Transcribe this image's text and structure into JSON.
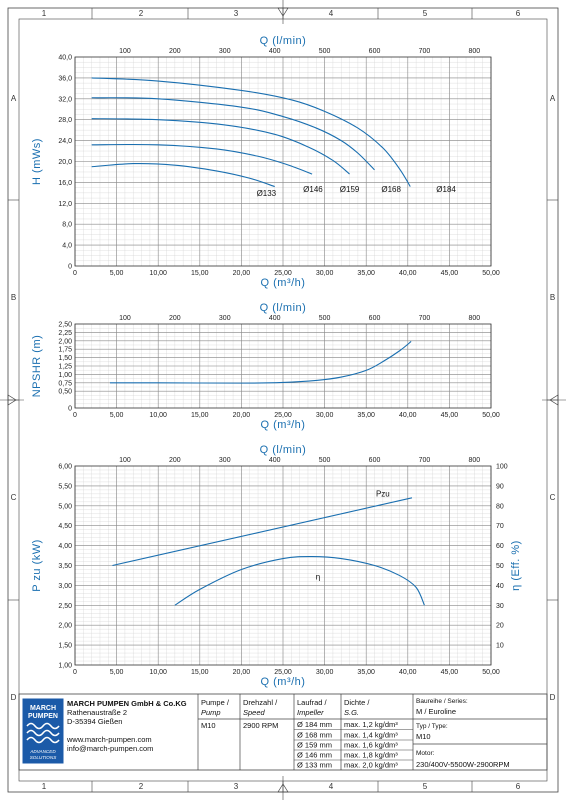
{
  "frame": {
    "columns": [
      "1",
      "2",
      "3",
      "4",
      "5",
      "6"
    ],
    "rows": [
      "A",
      "B",
      "C",
      "D"
    ]
  },
  "chart_data": [
    {
      "type": "line",
      "id": "head",
      "x_label": "Q (m³/h)",
      "x2_label": "Q (l/min)",
      "y_label": "H (mWs)",
      "xlim": [
        0,
        50
      ],
      "ylim": [
        0,
        40
      ],
      "x_ticks": [
        "0",
        "5,00",
        "10,00",
        "15,00",
        "20,00",
        "25,00",
        "30,00",
        "35,00",
        "40,00",
        "45,00",
        "50,00"
      ],
      "x2_ticks": [
        "100",
        "200",
        "300",
        "400",
        "500",
        "600",
        "700",
        "800"
      ],
      "y_ticks": [
        "0",
        "4,0",
        "8,0",
        "12,0",
        "16,0",
        "20,0",
        "24,0",
        "28,0",
        "32,0",
        "36,0",
        "40,0"
      ],
      "grid": true,
      "series": [
        {
          "name": "Ø184",
          "x": [
            2,
            10,
            20,
            26,
            30,
            34,
            37,
            39,
            40.3
          ],
          "y": [
            36,
            35.4,
            33.6,
            31.8,
            29.6,
            26.4,
            22.6,
            18.6,
            15.2
          ]
        },
        {
          "name": "Ø168",
          "x": [
            2,
            10,
            20,
            25,
            29,
            32,
            34,
            36
          ],
          "y": [
            32.2,
            32,
            30.4,
            28.6,
            26.4,
            24,
            21.6,
            18.4
          ]
        },
        {
          "name": "Ø159",
          "x": [
            2,
            10,
            18,
            24,
            28,
            31,
            33
          ],
          "y": [
            28.2,
            28,
            27,
            25.2,
            22.8,
            20.2,
            17.6
          ]
        },
        {
          "name": "Ø146",
          "x": [
            2,
            10,
            17,
            22,
            25.5,
            28.5
          ],
          "y": [
            23.2,
            23.2,
            22.4,
            21,
            19.4,
            17.6
          ]
        },
        {
          "name": "Ø133",
          "x": [
            2,
            7,
            12,
            17,
            21,
            24
          ],
          "y": [
            19,
            19.6,
            19.3,
            18.2,
            16.8,
            15.2
          ]
        }
      ],
      "labels": [
        {
          "text": "Ø133",
          "x": 23,
          "y": 13.4
        },
        {
          "text": "Ø146",
          "x": 28.6,
          "y": 14.2
        },
        {
          "text": "Ø159",
          "x": 33,
          "y": 14.2
        },
        {
          "text": "Ø168",
          "x": 38,
          "y": 14.2
        },
        {
          "text": "Ø184",
          "x": 44.6,
          "y": 14.2
        }
      ]
    },
    {
      "type": "line",
      "id": "npsh",
      "x_label": "Q (m³/h)",
      "x2_label": "Q (l/min)",
      "y_label": "NPSHR (m)",
      "xlim": [
        0,
        50
      ],
      "ylim": [
        0,
        2.5
      ],
      "x_ticks": [
        "0",
        "5,00",
        "10,00",
        "15,00",
        "20,00",
        "25,00",
        "30,00",
        "35,00",
        "40,00",
        "45,00",
        "50,00"
      ],
      "x2_ticks": [
        "100",
        "200",
        "300",
        "400",
        "500",
        "600",
        "700",
        "800"
      ],
      "y_ticks": [
        "0",
        "0,50",
        "0,75",
        "1,00",
        "1,25",
        "1,50",
        "1,75",
        "2,00",
        "2,25",
        "2,50"
      ],
      "grid": true,
      "series": [
        {
          "name": "NPSHR",
          "x": [
            4.2,
            10,
            20,
            25,
            29,
            32,
            35,
            37,
            39,
            40.4
          ],
          "y": [
            0.75,
            0.75,
            0.74,
            0.76,
            0.82,
            0.92,
            1.12,
            1.38,
            1.7,
            1.98
          ]
        }
      ]
    },
    {
      "type": "line",
      "id": "power-efficiency",
      "x_label": "Q (m³/h)",
      "x2_label": "Q (l/min)",
      "y_label": "P zu (kW)",
      "y2_label": "η (Eff. %)",
      "xlim": [
        0,
        50
      ],
      "ylim": [
        1,
        6
      ],
      "y2lim": [
        0,
        100
      ],
      "x_ticks": [
        "0",
        "5,00",
        "10,00",
        "15,00",
        "20,00",
        "25,00",
        "30,00",
        "35,00",
        "40,00",
        "45,00",
        "50,00"
      ],
      "x2_ticks": [
        "100",
        "200",
        "300",
        "400",
        "500",
        "600",
        "700",
        "800"
      ],
      "y_ticks": [
        "1,00 ",
        "1,50",
        "2,00",
        "2,50",
        "3,00",
        "3,50",
        "4,00",
        "4,50",
        "5,00",
        "5,50",
        "6,00"
      ],
      "y2_ticks": [
        "10",
        "20",
        "30",
        "40",
        "50",
        "60",
        "70",
        "80",
        "90",
        "100"
      ],
      "grid": true,
      "series": [
        {
          "name": "Pzu",
          "axis": "left",
          "x": [
            4.5,
            40.5
          ],
          "y": [
            3.5,
            5.2
          ]
        },
        {
          "name": "η",
          "axis": "right",
          "x": [
            12,
            15,
            20,
            25,
            28.5,
            32,
            36,
            39,
            41,
            42
          ],
          "y": [
            30,
            38,
            48,
            53.5,
            54.5,
            53.5,
            50,
            45,
            39,
            30
          ]
        }
      ],
      "labels": [
        {
          "text": "Pzu",
          "x": 37,
          "y": 5.23,
          "axis": "left"
        },
        {
          "text": "η",
          "x": 29.2,
          "y": 3.15,
          "axis": "left"
        }
      ]
    }
  ],
  "title_block": {
    "company": "MARCH PUMPEN GmbH & Co.KG",
    "street": "Rathenaustraße 2",
    "city": "D-35394 Gießen",
    "web": "www.march-pumpen.com",
    "email": "info@march-pumpen.com",
    "logo_line1": "MARCH",
    "logo_line2": "PUMPEN",
    "logo_tag1": "ADVANCED",
    "logo_tag2": "SOLUTIONS",
    "pump_label": "Pumpe /",
    "pump_label_en": "Pump",
    "pump_value": "M10",
    "speed_label": "Drehzahl /",
    "speed_label_en": "Speed",
    "speed_value": "2900 RPM",
    "impeller_label": "Laufrad /",
    "impeller_label_en": "Impeller",
    "sg_label": "Dichte /",
    "sg_label_en": "S.G.",
    "impellers": [
      {
        "size": "Ø 184 mm",
        "density": "max. 1,2 kg/dm³"
      },
      {
        "size": "Ø 168 mm",
        "density": "max. 1,4 kg/dm³"
      },
      {
        "size": "Ø 159 mm",
        "density": "max. 1,6 kg/dm³"
      },
      {
        "size": "Ø 146 mm",
        "density": "max. 1,8 kg/dm³"
      },
      {
        "size": "Ø 133 mm",
        "density": "max. 2,0 kg/dm³"
      }
    ],
    "series_label": "Baureihe / Series:",
    "series_value": "M / Euroline",
    "type_label": "Typ / Type:",
    "type_value": "M10",
    "motor_label": "Motor:",
    "motor_value": "230/400V-5500W-2900RPM"
  },
  "colors": {
    "curve": "#1a6fb0",
    "grid_minor": "#d2d2d2",
    "grid_major": "#8a8a8a",
    "frame": "#444444",
    "logo_bg": "#1b5aa8"
  }
}
